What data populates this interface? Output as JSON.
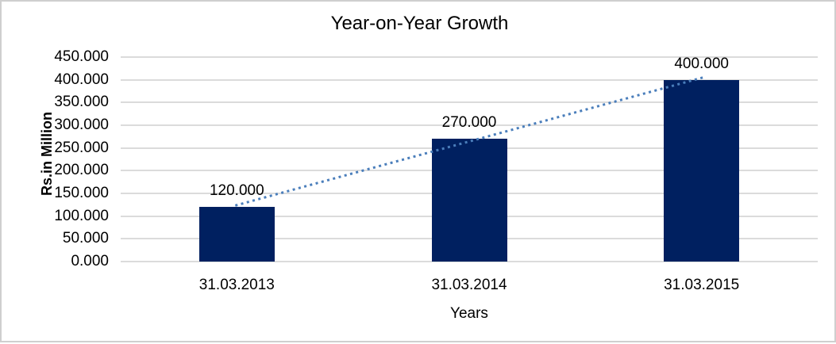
{
  "chart_data": {
    "type": "bar",
    "title": "Year-on-Year Growth",
    "xlabel": "Years",
    "ylabel": "Rs.in Million",
    "categories": [
      "31.03.2013",
      "31.03.2014",
      "31.03.2015"
    ],
    "values": [
      120,
      270,
      400
    ],
    "data_labels": [
      "120.000",
      "270.000",
      "400.000"
    ],
    "ylim": [
      0,
      450
    ],
    "ytick_step": 50,
    "ytick_labels": [
      "0.000",
      "50.000",
      "100.000",
      "150.000",
      "200.000",
      "250.000",
      "300.000",
      "350.000",
      "400.000",
      "450.000"
    ],
    "grid": true,
    "legend": "none",
    "trendline": {
      "type": "linear",
      "style": "dotted"
    },
    "colors": {
      "bar": "#002060",
      "trendline": "#4a7ebb",
      "gridline": "#dbdbdb",
      "text": "#000000",
      "frame": "#cfcfcf"
    }
  }
}
